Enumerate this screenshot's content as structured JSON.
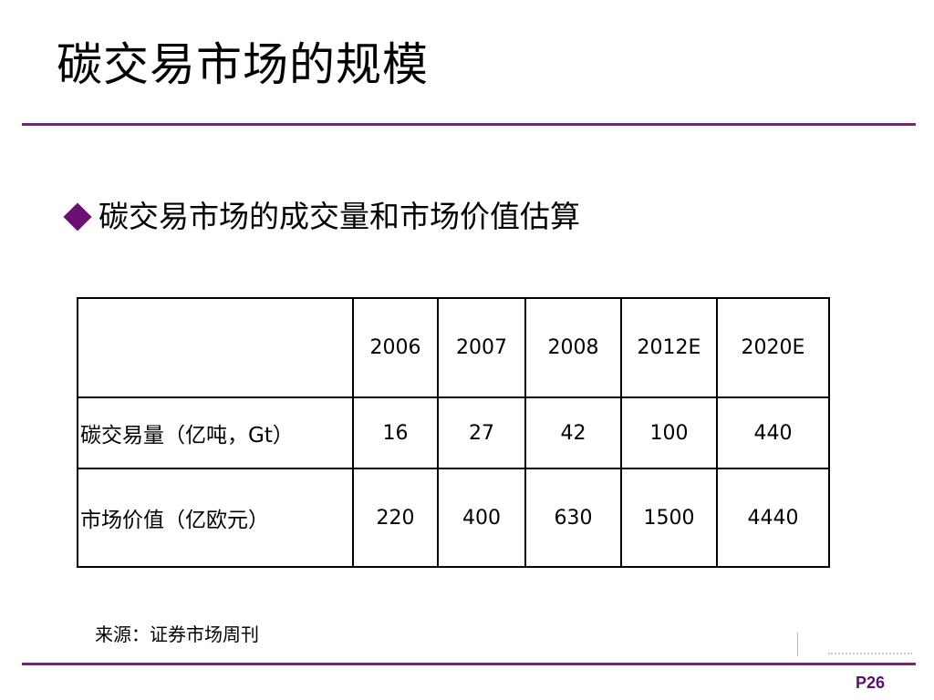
{
  "slide": {
    "title": "碳交易市场的规模",
    "bullet": "碳交易市场的成交量和市场价值估算",
    "source": "来源：证券市场周刊",
    "page_number": "P26",
    "accent_color": "#8b1a7e"
  },
  "table": {
    "header": [
      "",
      "2006",
      "2007",
      "2008",
      "2012E",
      "2020E"
    ],
    "rows": [
      {
        "label": "碳交易量（亿吨，Gt）",
        "values": [
          "16",
          "27",
          "42",
          "100",
          "440"
        ]
      },
      {
        "label": "市场价值（亿欧元）",
        "values": [
          "220",
          "400",
          "630",
          "1500",
          "4440"
        ]
      }
    ]
  }
}
